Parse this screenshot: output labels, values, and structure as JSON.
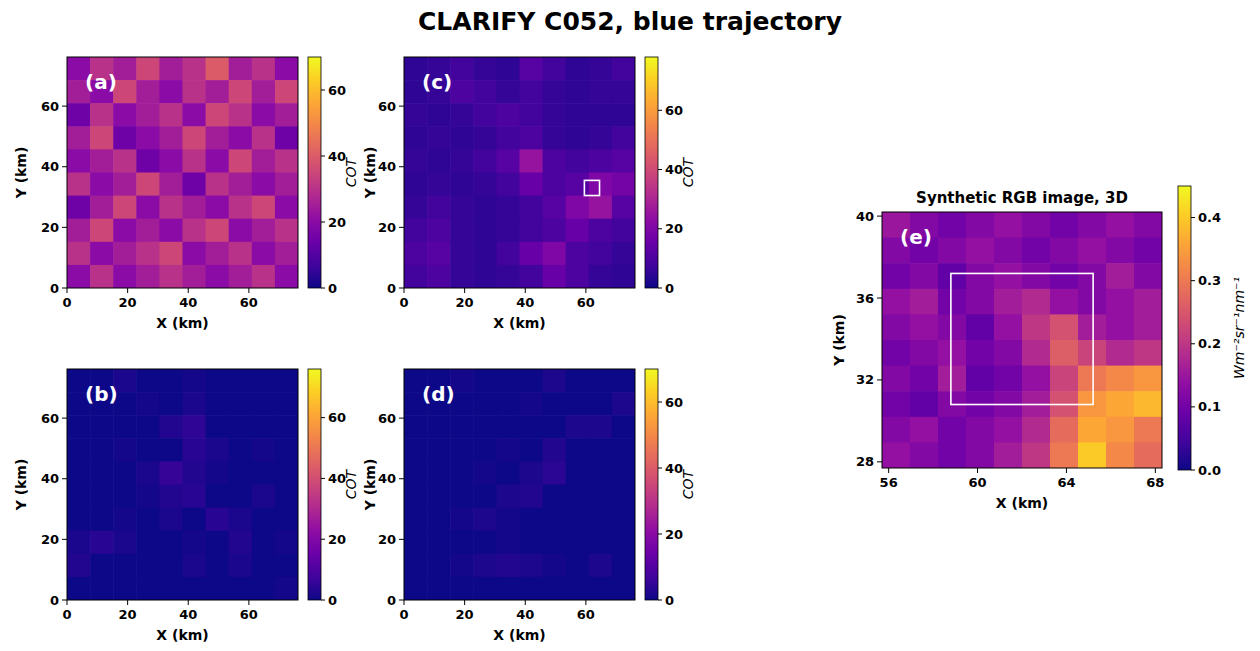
{
  "title": "CLARIFY C052, blue trajectory",
  "chart_data": [
    {
      "type": "heatmap",
      "panel_label": "(a)",
      "xlabel": "X (km)",
      "ylabel": "Y (km)",
      "xlim": [
        0,
        76.2
      ],
      "ylim": [
        0,
        76.2
      ],
      "xticks": [
        0,
        20,
        40,
        60
      ],
      "yticks": [
        0,
        20,
        40,
        60
      ],
      "cells": [
        [
          20,
          30,
          25,
          35,
          25,
          30,
          40,
          25,
          30,
          20
        ],
        [
          25,
          20,
          35,
          25,
          20,
          30,
          25,
          35,
          25,
          35
        ],
        [
          15,
          30,
          20,
          25,
          30,
          20,
          35,
          30,
          20,
          25
        ],
        [
          25,
          35,
          15,
          20,
          25,
          35,
          25,
          20,
          30,
          15
        ],
        [
          20,
          25,
          30,
          15,
          20,
          30,
          20,
          35,
          25,
          30
        ],
        [
          30,
          20,
          25,
          35,
          25,
          15,
          30,
          25,
          20,
          25
        ],
        [
          15,
          25,
          35,
          20,
          30,
          25,
          20,
          30,
          35,
          20
        ],
        [
          25,
          35,
          20,
          25,
          20,
          30,
          35,
          20,
          25,
          30
        ],
        [
          30,
          20,
          25,
          30,
          35,
          20,
          25,
          30,
          20,
          25
        ],
        [
          20,
          30,
          20,
          25,
          30,
          25,
          20,
          25,
          30,
          20
        ]
      ],
      "colorbar": {
        "label": "COT",
        "range": [
          0,
          70
        ],
        "ticks": [
          0,
          20,
          40,
          60
        ]
      }
    },
    {
      "type": "heatmap",
      "panel_label": "(b)",
      "xlabel": "X (km)",
      "ylabel": "Y (km)",
      "xlim": [
        0,
        76.2
      ],
      "ylim": [
        0,
        76.2
      ],
      "xticks": [
        0,
        20,
        40,
        60
      ],
      "yticks": [
        0,
        20,
        40,
        60
      ],
      "cells": [
        [
          0,
          0,
          2,
          0,
          0,
          1,
          0,
          0,
          0,
          0
        ],
        [
          0,
          0,
          0,
          1,
          0,
          2,
          0,
          0,
          0,
          0
        ],
        [
          0,
          0,
          0,
          0,
          3,
          5,
          0,
          0,
          0,
          0
        ],
        [
          0,
          0,
          1,
          0,
          0,
          4,
          2,
          0,
          1,
          0
        ],
        [
          0,
          0,
          0,
          2,
          6,
          3,
          1,
          0,
          0,
          0
        ],
        [
          0,
          0,
          0,
          1,
          3,
          4,
          0,
          0,
          2,
          0
        ],
        [
          0,
          0,
          1,
          0,
          2,
          0,
          4,
          2,
          0,
          0
        ],
        [
          2,
          4,
          2,
          0,
          0,
          1,
          0,
          3,
          0,
          1
        ],
        [
          3,
          0,
          0,
          0,
          0,
          2,
          0,
          2,
          0,
          0
        ],
        [
          0,
          0,
          0,
          0,
          0,
          0,
          0,
          0,
          0,
          1
        ]
      ],
      "colorbar": {
        "label": "COT",
        "range": [
          0,
          76
        ],
        "ticks": [
          0,
          20,
          40,
          60
        ]
      }
    },
    {
      "type": "heatmap",
      "panel_label": "(c)",
      "xlabel": "X (km)",
      "ylabel": "Y (km)",
      "xlim": [
        0,
        76.2
      ],
      "ylim": [
        0,
        76.2
      ],
      "xticks": [
        0,
        20,
        40,
        60
      ],
      "yticks": [
        0,
        20,
        40,
        60
      ],
      "cells": [
        [
          5,
          6,
          8,
          6,
          5,
          12,
          8,
          5,
          6,
          8
        ],
        [
          5,
          6,
          10,
          8,
          6,
          8,
          6,
          5,
          6,
          6
        ],
        [
          6,
          5,
          6,
          8,
          10,
          8,
          6,
          5,
          5,
          5
        ],
        [
          5,
          6,
          5,
          6,
          8,
          10,
          6,
          5,
          6,
          8
        ],
        [
          6,
          5,
          6,
          8,
          12,
          25,
          10,
          8,
          10,
          12
        ],
        [
          5,
          6,
          5,
          6,
          8,
          15,
          10,
          12,
          20,
          18
        ],
        [
          6,
          8,
          6,
          5,
          6,
          8,
          12,
          20,
          25,
          12
        ],
        [
          8,
          10,
          6,
          5,
          6,
          8,
          10,
          15,
          10,
          8
        ],
        [
          10,
          12,
          6,
          5,
          8,
          15,
          20,
          10,
          8,
          6
        ],
        [
          8,
          10,
          6,
          5,
          6,
          8,
          15,
          10,
          6,
          5
        ]
      ],
      "colorbar": {
        "label": "COT",
        "range": [
          0,
          78
        ],
        "ticks": [
          0,
          20,
          40,
          60
        ]
      },
      "box": {
        "x": [
          59.5,
          64.5
        ],
        "y": [
          30.5,
          35.5
        ]
      }
    },
    {
      "type": "heatmap",
      "panel_label": "(d)",
      "xlabel": "X (km)",
      "ylabel": "Y (km)",
      "xlim": [
        0,
        76.2
      ],
      "ylim": [
        0,
        76.2
      ],
      "xticks": [
        0,
        20,
        40,
        60
      ],
      "yticks": [
        0,
        20,
        40,
        60
      ],
      "cells": [
        [
          0,
          0,
          1,
          0,
          0,
          0,
          2,
          0,
          0,
          0
        ],
        [
          0,
          0,
          0,
          0,
          0,
          1,
          0,
          0,
          0,
          2
        ],
        [
          0,
          0,
          0,
          0,
          0,
          0,
          0,
          2,
          2,
          0
        ],
        [
          0,
          0,
          0,
          0,
          1,
          0,
          3,
          0,
          0,
          0
        ],
        [
          0,
          0,
          0,
          1,
          0,
          2,
          4,
          0,
          0,
          0
        ],
        [
          0,
          0,
          0,
          0,
          2,
          3,
          0,
          0,
          0,
          0
        ],
        [
          0,
          0,
          1,
          2,
          1,
          0,
          0,
          0,
          0,
          0
        ],
        [
          0,
          0,
          0,
          0,
          1,
          0,
          0,
          0,
          0,
          0
        ],
        [
          0,
          0,
          1,
          2,
          3,
          2,
          1,
          0,
          2,
          0
        ],
        [
          0,
          0,
          0,
          0,
          0,
          0,
          0,
          0,
          0,
          0
        ]
      ],
      "colorbar": {
        "label": "COT",
        "range": [
          0,
          70
        ],
        "ticks": [
          0,
          20,
          40,
          60
        ]
      }
    },
    {
      "type": "heatmap",
      "panel_label": "(e)",
      "title": "Synthetic RGB image, 3D",
      "xlabel": "X (km)",
      "ylabel": "Y (km)",
      "xlim": [
        55.7,
        68.3
      ],
      "ylim": [
        27.7,
        40.2
      ],
      "xticks": [
        56,
        60,
        64,
        68
      ],
      "yticks": [
        28,
        32,
        36,
        40
      ],
      "cells": [
        [
          0.15,
          0.12,
          0.1,
          0.12,
          0.14,
          0.12,
          0.1,
          0.12,
          0.14,
          0.12
        ],
        [
          0.12,
          0.1,
          0.12,
          0.14,
          0.12,
          0.1,
          0.12,
          0.14,
          0.12,
          0.1
        ],
        [
          0.1,
          0.12,
          0.08,
          0.12,
          0.14,
          0.12,
          0.1,
          0.12,
          0.16,
          0.12
        ],
        [
          0.14,
          0.16,
          0.1,
          0.12,
          0.16,
          0.18,
          0.14,
          0.12,
          0.14,
          0.16
        ],
        [
          0.12,
          0.14,
          0.12,
          0.08,
          0.14,
          0.2,
          0.24,
          0.16,
          0.14,
          0.16
        ],
        [
          0.1,
          0.12,
          0.14,
          0.1,
          0.12,
          0.18,
          0.26,
          0.22,
          0.18,
          0.2
        ],
        [
          0.12,
          0.1,
          0.16,
          0.08,
          0.1,
          0.14,
          0.22,
          0.3,
          0.32,
          0.34
        ],
        [
          0.1,
          0.08,
          0.12,
          0.1,
          0.12,
          0.16,
          0.24,
          0.34,
          0.36,
          0.38
        ],
        [
          0.12,
          0.14,
          0.1,
          0.12,
          0.14,
          0.18,
          0.28,
          0.36,
          0.34,
          0.3
        ],
        [
          0.14,
          0.12,
          0.1,
          0.12,
          0.16,
          0.2,
          0.3,
          0.4,
          0.32,
          0.28
        ]
      ],
      "colorbar": {
        "label": "Wm⁻²sr⁻¹nm⁻¹",
        "range": [
          0,
          0.45
        ],
        "ticks": [
          {
            "value": 0,
            "label": "0.0"
          },
          {
            "value": 0.1,
            "label": "0.1"
          },
          {
            "value": 0.2,
            "label": "0.2"
          },
          {
            "value": 0.3,
            "label": "0.3"
          },
          {
            "value": 0.4,
            "label": "0.4"
          }
        ]
      },
      "box": {
        "x": [
          58.8,
          65.2
        ],
        "y": [
          30.8,
          37.2
        ]
      }
    }
  ]
}
